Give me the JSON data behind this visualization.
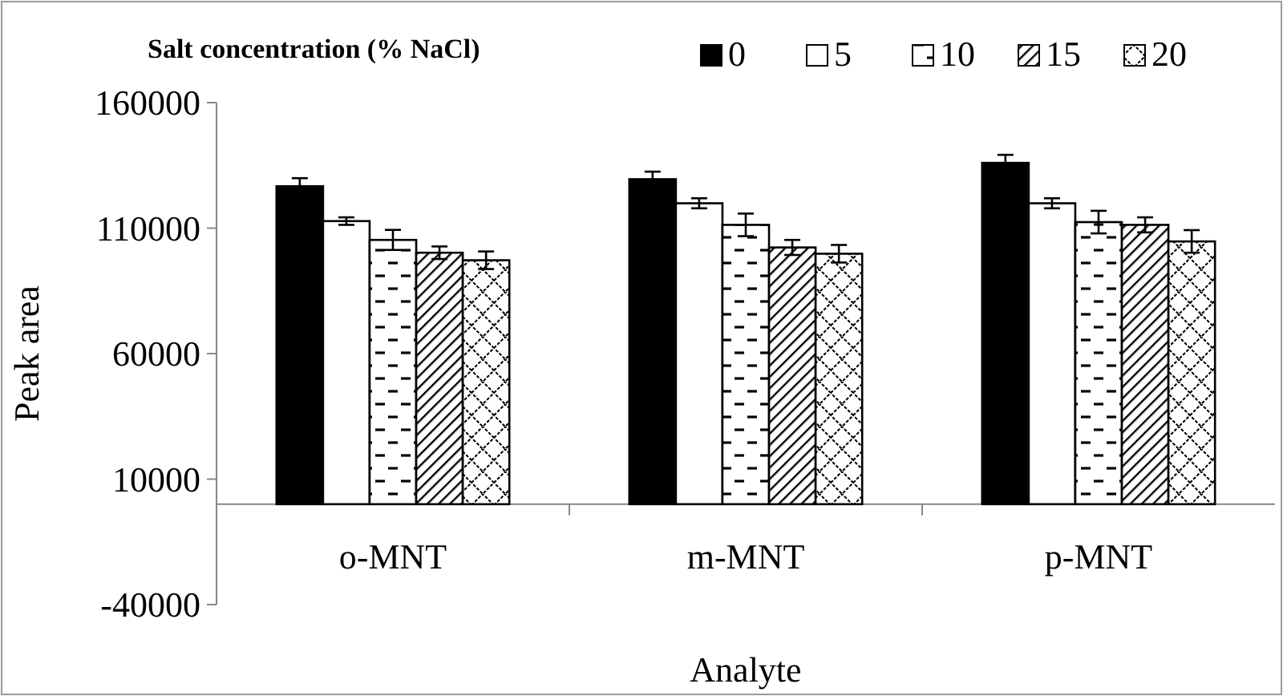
{
  "chart_data": {
    "type": "bar",
    "xlabel": "Analyte",
    "ylabel": "Peak area",
    "legend_title": "Salt concentration (% NaCl)",
    "legend": "top right",
    "categories": [
      "o-MNT",
      "m-MNT",
      "p-MNT"
    ],
    "ylim": [
      -40000,
      160000
    ],
    "yticks": [
      -40000,
      10000,
      60000,
      110000,
      160000
    ],
    "grid": false,
    "series": [
      {
        "name": "0",
        "color": "#000000",
        "values": [
          126700,
          129500,
          136000
        ],
        "errors": [
          3200,
          3000,
          3200
        ]
      },
      {
        "name": "5",
        "color": "#ffffff",
        "values": [
          112800,
          119900,
          119900
        ],
        "errors": [
          1500,
          2000,
          2000
        ]
      },
      {
        "name": "10",
        "color": "#000000",
        "values": [
          105300,
          111300,
          112400
        ],
        "errors": [
          4000,
          4500,
          4500
        ]
      },
      {
        "name": "15",
        "color": "#000000",
        "values": [
          100200,
          102300,
          111300
        ],
        "errors": [
          2500,
          3000,
          3000
        ]
      },
      {
        "name": "20",
        "color": "#000000",
        "values": [
          97200,
          99800,
          104700
        ],
        "errors": [
          3500,
          3500,
          4500
        ]
      }
    ]
  }
}
